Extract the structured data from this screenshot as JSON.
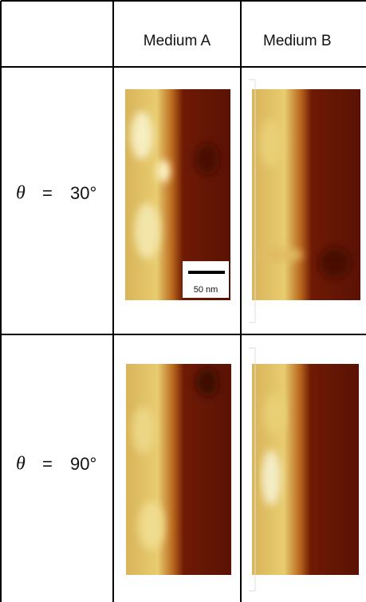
{
  "header": {
    "columns": [
      "Medium A",
      "Medium B"
    ]
  },
  "rows": [
    {
      "symbol": "θ",
      "relation": "=",
      "angle": "30°"
    },
    {
      "symbol": "θ",
      "relation": "=",
      "angle": "90°"
    }
  ],
  "scale_bar": "50 nm"
}
